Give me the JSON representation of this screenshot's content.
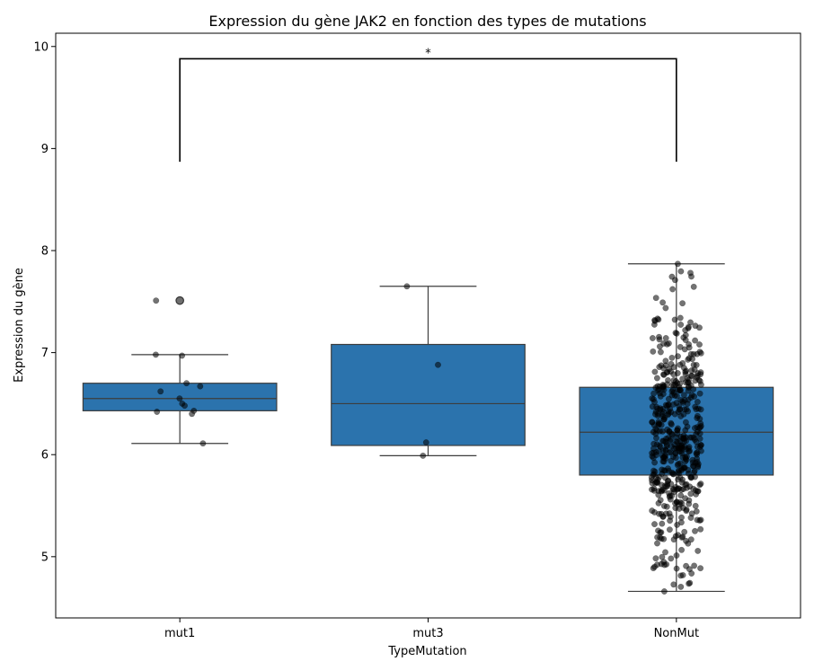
{
  "chart_data": {
    "type": "box",
    "title": "Expression du gène JAK2 en fonction des types de mutations",
    "xlabel": "TypeMutation",
    "ylabel": "Expression du gène",
    "categories": [
      "mut1",
      "mut3",
      "NonMut"
    ],
    "ylim": [
      4.4,
      10.13
    ],
    "yticks": [
      5,
      6,
      7,
      8,
      9,
      10
    ],
    "ytick_labels": [
      "5",
      "6",
      "7",
      "8",
      "9",
      "10"
    ],
    "grid": false,
    "box_color": "#2b73ad",
    "point_color": "#000000",
    "boxes": [
      {
        "category": "mut1",
        "whisker_low": 6.11,
        "q1": 6.43,
        "median": 6.55,
        "q3": 6.7,
        "whisker_high": 6.98,
        "outliers": [
          7.51
        ]
      },
      {
        "category": "mut3",
        "whisker_low": 5.99,
        "q1": 6.09,
        "median": 6.5,
        "q3": 7.08,
        "whisker_high": 7.65,
        "outliers": []
      },
      {
        "category": "NonMut",
        "whisker_low": 4.66,
        "q1": 5.8,
        "median": 6.22,
        "q3": 6.66,
        "whisker_high": 7.87,
        "outliers": []
      }
    ],
    "points": [
      {
        "category": "mut1",
        "values": [
          7.51,
          6.98,
          6.97,
          6.7,
          6.67,
          6.62,
          6.55,
          6.5,
          6.48,
          6.43,
          6.42,
          6.4,
          6.11
        ]
      },
      {
        "category": "mut3",
        "values": [
          7.65,
          6.88,
          6.12,
          5.99
        ]
      },
      {
        "category": "NonMut",
        "count": 520,
        "range": [
          4.66,
          7.87
        ],
        "median": 6.22,
        "q1": 5.8,
        "q3": 6.66
      }
    ],
    "annotations": [
      {
        "type": "significance-bracket",
        "from": "mut1",
        "to": "NonMut",
        "y": 9.88,
        "y_bottom": 8.87,
        "text": "*"
      }
    ]
  }
}
